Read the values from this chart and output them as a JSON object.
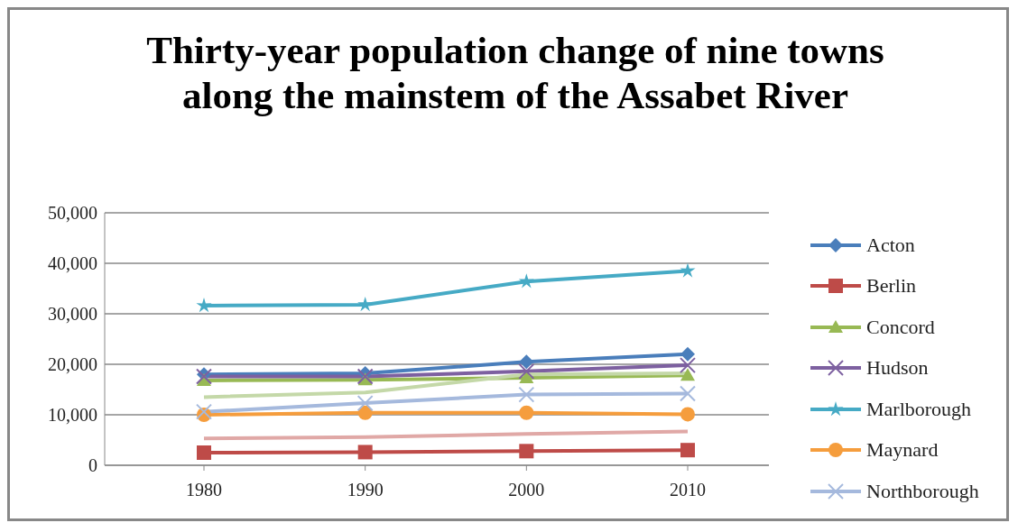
{
  "chart_data": {
    "type": "line",
    "title": "Thirty-year population change of nine towns along the mainstem of the Assabet River",
    "categories": [
      "1980",
      "1990",
      "2000",
      "2010"
    ],
    "series": [
      {
        "name": "Acton",
        "color": "#4a7ebb",
        "marker": "diamond",
        "values": [
          18000,
          18200,
          20500,
          22000
        ]
      },
      {
        "name": "Berlin",
        "color": "#be4b48",
        "marker": "square",
        "values": [
          2500,
          2600,
          2800,
          3000
        ]
      },
      {
        "name": "Concord",
        "color": "#98b954",
        "marker": "triangle",
        "values": [
          16800,
          16900,
          17300,
          17800
        ]
      },
      {
        "name": "Hudson",
        "color": "#7d60a0",
        "marker": "cross",
        "values": [
          17600,
          17600,
          18600,
          19800
        ]
      },
      {
        "name": "Marlborough",
        "color": "#46aac5",
        "marker": "star",
        "values": [
          31600,
          31800,
          36400,
          38500
        ]
      },
      {
        "name": "Maynard",
        "color": "#f59d3d",
        "marker": "circle",
        "values": [
          10000,
          10400,
          10400,
          10100
        ]
      },
      {
        "name": "Northborough",
        "color": "#a5b9dd",
        "marker": "cross",
        "values": [
          10600,
          12300,
          14000,
          14200
        ]
      },
      {
        "color": "#c4d8a8",
        "marker": "none",
        "values": [
          13500,
          14400,
          18000,
          18200
        ]
      },
      {
        "color": "#e0a8a6",
        "marker": "none",
        "values": [
          5300,
          5600,
          6200,
          6700
        ]
      }
    ],
    "ylim": [
      0,
      50000
    ],
    "yticks": [
      {
        "value": 0,
        "label": "0"
      },
      {
        "value": 10000,
        "label": "10,000"
      },
      {
        "value": 20000,
        "label": "20,000"
      },
      {
        "value": 30000,
        "label": "30,000"
      },
      {
        "value": 40000,
        "label": "40,000"
      },
      {
        "value": 50000,
        "label": "50,000"
      }
    ],
    "grid": "y",
    "legend": "right",
    "line_style": "solid"
  }
}
